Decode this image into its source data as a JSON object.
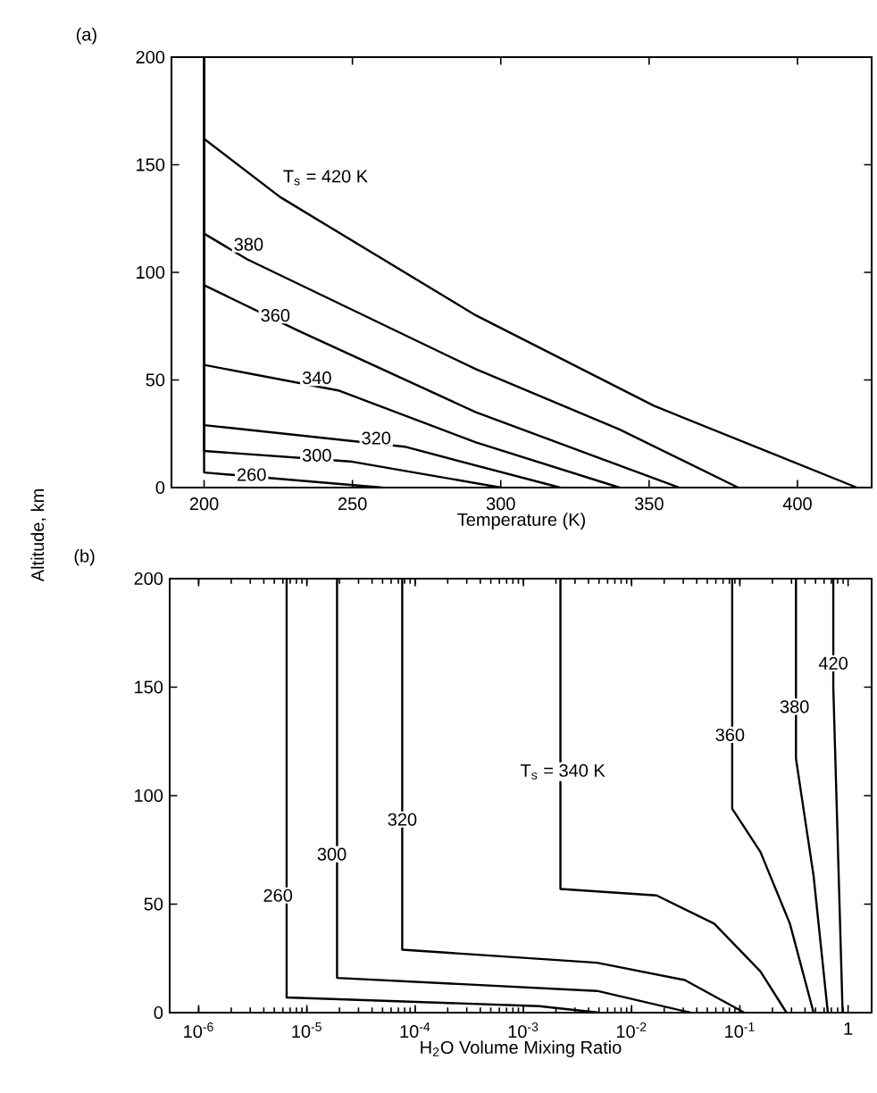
{
  "chart_data": [
    {
      "type": "line",
      "title": "(a)",
      "xlabel": "Temperature (K)",
      "ylabel": "Altitude, km",
      "marker": "none",
      "line_style": "solid",
      "xlim": [
        189,
        425
      ],
      "ylim": [
        0,
        200
      ],
      "xticks": [
        200,
        250,
        300,
        350,
        400
      ],
      "yticks": [
        0,
        50,
        100,
        150,
        200
      ],
      "series": [
        {
          "color": "#000000",
          "x": [
            200,
            200,
            225.6,
            291.6,
            351.6,
            420
          ],
          "values": [
            200,
            162,
            135,
            80,
            38,
            0
          ]
        },
        {
          "color": "#000000",
          "x": [
            200,
            200,
            214.6,
            291.6,
            340,
            380
          ],
          "values": [
            200,
            118,
            106,
            55,
            27,
            0
          ]
        },
        {
          "color": "#000000",
          "x": [
            200,
            200,
            231.6,
            291.6,
            360
          ],
          "values": [
            200,
            94,
            73,
            35,
            0
          ]
        },
        {
          "color": "#000000",
          "x": [
            200,
            200,
            245.6,
            291.6,
            340
          ],
          "values": [
            200,
            57,
            45,
            21,
            0
          ]
        },
        {
          "color": "#000000",
          "x": [
            200,
            200,
            267.6,
            320
          ],
          "values": [
            200,
            29,
            19,
            0
          ]
        },
        {
          "color": "#000000",
          "x": [
            200,
            200,
            250,
            300
          ],
          "values": [
            200,
            17,
            12,
            0
          ]
        },
        {
          "color": "#000000",
          "x": [
            200,
            200,
            260
          ],
          "values": [
            200,
            7,
            0
          ]
        }
      ],
      "annotations": [
        "T$_{s}$ = 420 K",
        {
          "text": "380",
          "x": 215,
          "y": 113
        },
        {
          "text": "360",
          "x": 224,
          "y": 80
        },
        {
          "text": "340",
          "x": 238,
          "y": 51
        },
        {
          "text": "320",
          "x": 258,
          "y": 23
        },
        {
          "text": "300",
          "x": 238,
          "y": 15
        },
        {
          "text": "260",
          "x": 216,
          "y": 6
        }
      ]
    },
    {
      "type": "line",
      "title": "(b)",
      "xlabel": "H$_{2}$O Volume Mixing Ratio",
      "log": "x",
      "marker": "none",
      "line_style": "solid",
      "xlim": [
        5.4e-07,
        1.65
      ],
      "ylim": [
        0,
        200
      ],
      "xticks": [
        {
          "value": 1e-06,
          "label": "10$^{-6}$"
        },
        {
          "value": 1e-05,
          "label": "10$^{-5}$"
        },
        {
          "value": 0.0001,
          "label": "10$^{-4}$"
        },
        {
          "value": 0.001,
          "label": "10$^{-3}$"
        },
        {
          "value": 0.01,
          "label": "10$^{-2}$"
        },
        {
          "value": 0.1,
          "label": "10$^{-1}$"
        },
        1
      ],
      "yticks": [
        0,
        50,
        100,
        150,
        200
      ],
      "series": [
        {
          "color": "#000000",
          "x": [
            6.5e-06,
            6.5e-06,
            0.0014,
            0.005
          ],
          "values": [
            200,
            7,
            3,
            0
          ]
        },
        {
          "color": "#000000",
          "x": [
            1.9e-05,
            1.9e-05,
            0.0048,
            0.035
          ],
          "values": [
            200,
            16,
            10,
            0
          ]
        },
        {
          "color": "#000000",
          "x": [
            7.6e-05,
            7.6e-05,
            0.0048,
            0.031,
            0.11
          ],
          "values": [
            200,
            29,
            23,
            15,
            0
          ]
        },
        {
          "color": "#000000",
          "x": [
            0.0022,
            0.0022,
            0.017,
            0.058,
            0.155,
            0.27
          ],
          "values": [
            200,
            57,
            54,
            41,
            19,
            0
          ]
        },
        {
          "color": "#000000",
          "x": [
            0.085,
            0.085,
            0.155,
            0.29,
            0.48
          ],
          "values": [
            200,
            94,
            74,
            41,
            0
          ]
        },
        {
          "color": "#000000",
          "x": [
            0.33,
            0.33,
            0.48,
            0.65
          ],
          "values": [
            200,
            117,
            63,
            0
          ]
        },
        {
          "color": "#000000",
          "x": [
            0.73,
            0.73,
            0.89
          ],
          "values": [
            200,
            150,
            0
          ]
        }
      ],
      "annotations": [
        {
          "text": "260",
          "x": 5.4e-06,
          "y": 54
        },
        {
          "text": "300",
          "x": 1.7e-05,
          "y": 73
        },
        {
          "text": "320",
          "x": 7.6e-05,
          "y": 89
        },
        "T$_{s}$ = 340 K",
        {
          "text": "360",
          "x": 0.081,
          "y": 128
        },
        {
          "text": "380",
          "x": 0.32,
          "y": 141
        },
        {
          "text": "420",
          "x": 0.73,
          "y": 161
        }
      ]
    }
  ]
}
